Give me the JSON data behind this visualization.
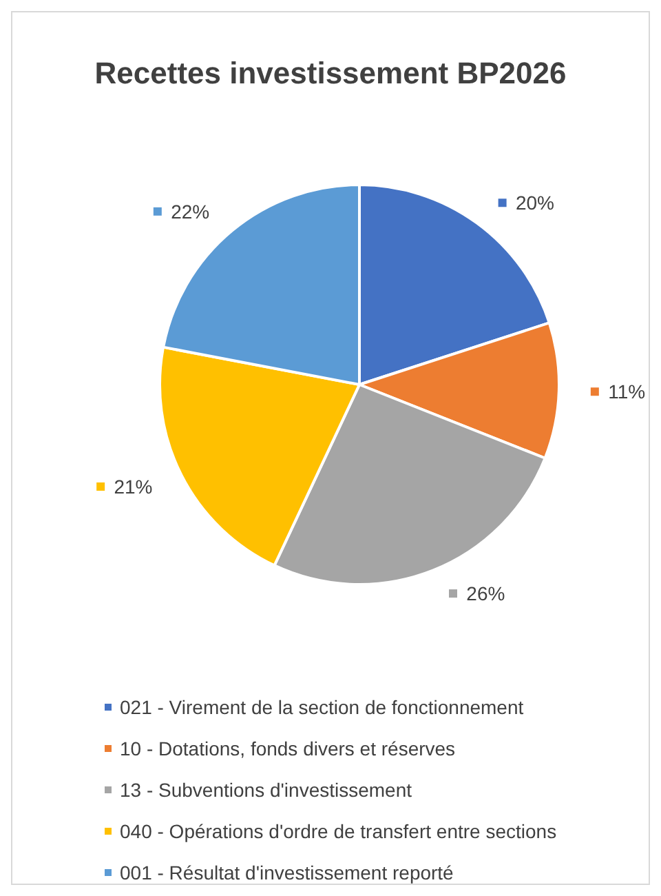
{
  "chart_data": {
    "type": "pie",
    "title": "Recettes investissement BP2026",
    "categories": [
      "021 - Virement de la section de fonctionnement",
      "10 - Dotations, fonds divers et réserves",
      "13 - Subventions d'investissement",
      "040 - Opérations d'ordre de transfert entre sections",
      "001 - Résultat d'investissement reporté"
    ],
    "values": [
      20,
      11,
      26,
      21,
      22
    ],
    "colors": [
      "#4472c4",
      "#ed7d31",
      "#a5a5a5",
      "#ffc000",
      "#5b9bd5"
    ],
    "value_labels": [
      "20%",
      "11%",
      "26%",
      "21%",
      "22%"
    ],
    "data_labels": true,
    "legend": "bottom"
  }
}
